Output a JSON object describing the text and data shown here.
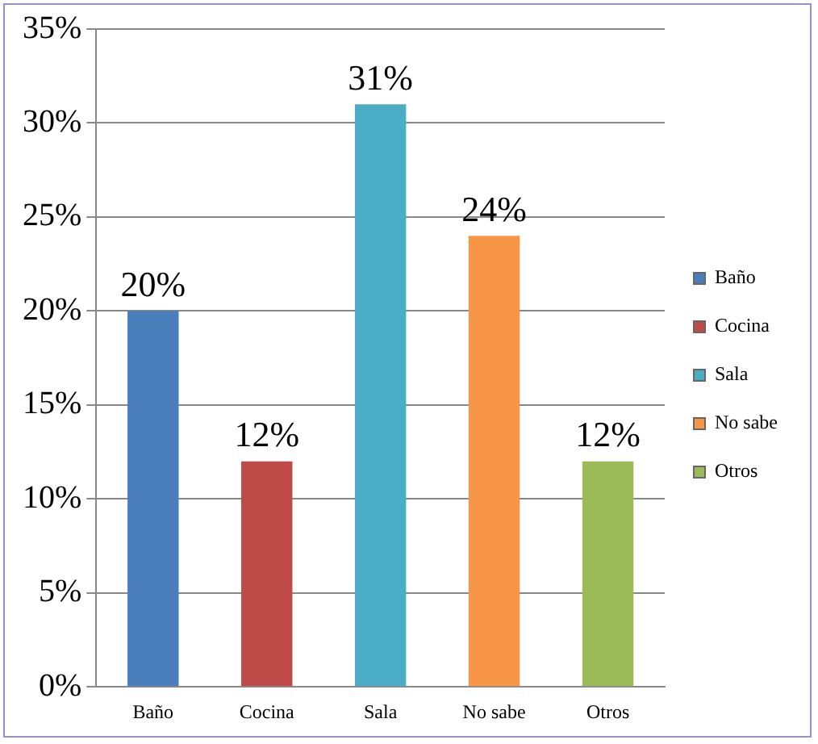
{
  "chart_data": {
    "type": "bar",
    "categories": [
      "Baño",
      "Cocina",
      "Sala",
      "No sabe",
      "Otros"
    ],
    "series": [
      {
        "name": "Baño",
        "color": "#4a7ebb",
        "values": [
          20,
          null,
          null,
          null,
          null
        ],
        "value_labels": [
          "20%",
          null,
          null,
          null,
          null
        ]
      },
      {
        "name": "Cocina",
        "color": "#be4b48",
        "values": [
          null,
          12,
          null,
          null,
          null
        ],
        "value_labels": [
          null,
          "12%",
          null,
          null,
          null
        ]
      },
      {
        "name": "Sala",
        "color": "#4bacc6",
        "values": [
          null,
          null,
          31,
          null,
          null
        ],
        "value_labels": [
          null,
          null,
          "31%",
          null,
          null
        ]
      },
      {
        "name": "No sabe",
        "color": "#f79646",
        "values": [
          null,
          null,
          null,
          24,
          null
        ],
        "value_labels": [
          null,
          null,
          null,
          "24%",
          null
        ]
      },
      {
        "name": "Otros",
        "color": "#9bbb59",
        "values": [
          null,
          null,
          null,
          null,
          12
        ],
        "value_labels": [
          null,
          null,
          null,
          null,
          "12%"
        ]
      }
    ],
    "ylim": [
      0,
      35
    ],
    "yticks": [
      {
        "value": 0,
        "label": "0%"
      },
      {
        "value": 5,
        "label": "5%"
      },
      {
        "value": 10,
        "label": "10%"
      },
      {
        "value": 15,
        "label": "15%"
      },
      {
        "value": 20,
        "label": "20%"
      },
      {
        "value": 25,
        "label": "25%"
      },
      {
        "value": 30,
        "label": "30%"
      },
      {
        "value": 35,
        "label": "35%"
      }
    ],
    "grid": "y",
    "legend": "right"
  }
}
